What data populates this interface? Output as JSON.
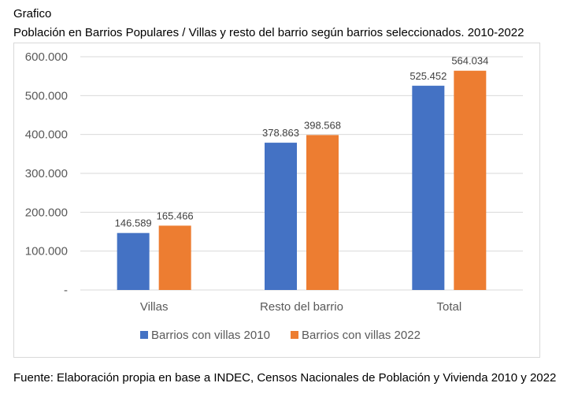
{
  "header": {
    "label": "Grafico",
    "title": "Población en Barrios Populares / Villas y resto del barrio según barrios seleccionados. 2010-2022"
  },
  "source": "Fuente: Elaboración propia en base a INDEC, Censos Nacionales de Población y Vivienda 2010 y 2022",
  "chart_data": {
    "type": "bar",
    "categories": [
      "Villas",
      "Resto del barrio",
      "Total"
    ],
    "series": [
      {
        "name": "Barrios con villas 2010",
        "values": [
          146589,
          378863,
          525452
        ],
        "labels": [
          "146.589",
          "378.863",
          "525.452"
        ],
        "color": "#4472c4"
      },
      {
        "name": "Barrios con villas 2022",
        "values": [
          165466,
          398568,
          564034
        ],
        "labels": [
          "165.466",
          "398.568",
          "564.034"
        ],
        "color": "#ed7d31"
      }
    ],
    "ylim": [
      0,
      600000
    ],
    "yticks": [
      0,
      100000,
      200000,
      300000,
      400000,
      500000,
      600000
    ],
    "ytick_labels": [
      "-",
      "100.000",
      "200.000",
      "300.000",
      "400.000",
      "500.000",
      "600.000"
    ],
    "grid": true,
    "legend": "bottom"
  }
}
